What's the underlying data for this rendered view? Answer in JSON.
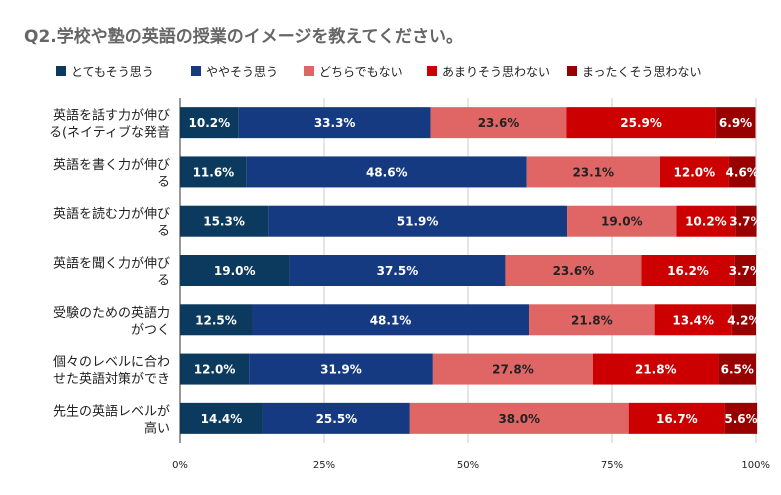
{
  "chart_data": {
    "type": "bar",
    "orientation": "horizontal",
    "stacked": true,
    "title": "Q2.学校や塾の英語の授業のイメージを教えてください。",
    "xlabel": "",
    "ylabel": "",
    "xlim": [
      0,
      100
    ],
    "x_ticks": [
      "0%",
      "25%",
      "50%",
      "75%",
      "100%"
    ],
    "legend_position": "top",
    "categories": [
      [
        "英語を話す力が伸び",
        "る(ネイティブな発音"
      ],
      [
        "英語を書く力が伸び",
        "る"
      ],
      [
        "英語を読む力が伸び",
        "る"
      ],
      [
        "英語を聞く力が伸び",
        "る"
      ],
      [
        "受験のための英語力",
        "がつく"
      ],
      [
        "個々のレベルに合わ",
        "せた英語対策ができ"
      ],
      [
        "先生の英語レベルが",
        "高い"
      ]
    ],
    "series": [
      {
        "name": "とてもそう思う",
        "color": "#0c3a5f",
        "label_color": "#ffffff",
        "values": [
          10.2,
          11.6,
          15.3,
          19.0,
          12.5,
          12.0,
          14.4
        ],
        "labels": [
          "10.2%",
          "11.6%",
          "15.3%",
          "19.0%",
          "12.5%",
          "12.0%",
          "14.4%"
        ]
      },
      {
        "name": "ややそう思う",
        "color": "#153a82",
        "label_color": "#ffffff",
        "values": [
          33.3,
          48.6,
          51.9,
          37.5,
          48.1,
          31.9,
          25.5
        ],
        "labels": [
          "33.3%",
          "48.6%",
          "51.9%",
          "37.5%",
          "48.1%",
          "31.9%",
          "25.5%"
        ]
      },
      {
        "name": "どちらでもない",
        "color": "#e06666",
        "label_color": "#222222",
        "values": [
          23.6,
          23.1,
          19.0,
          23.6,
          21.8,
          27.8,
          38.0
        ],
        "labels": [
          "23.6%",
          "23.1%",
          "19.0%",
          "23.6%",
          "21.8%",
          "27.8%",
          "38.0%"
        ]
      },
      {
        "name": "あまりそう思わない",
        "color": "#cc0000",
        "label_color": "#ffffff",
        "values": [
          25.9,
          12.0,
          10.2,
          16.2,
          13.4,
          21.8,
          16.7
        ],
        "labels": [
          "25.9%",
          "12.0%",
          "10.2%",
          "16.2%",
          "13.4%",
          "21.8%",
          "16.7%"
        ]
      },
      {
        "name": "まったくそう思わない",
        "color": "#990000",
        "label_color": "#ffffff",
        "values": [
          6.9,
          4.6,
          3.7,
          3.7,
          4.2,
          6.5,
          5.6
        ],
        "labels": [
          "6.9%",
          "4.6%",
          "3.7%",
          "3.7%",
          "4.2%",
          "6.5%",
          "5.6%"
        ]
      }
    ]
  }
}
